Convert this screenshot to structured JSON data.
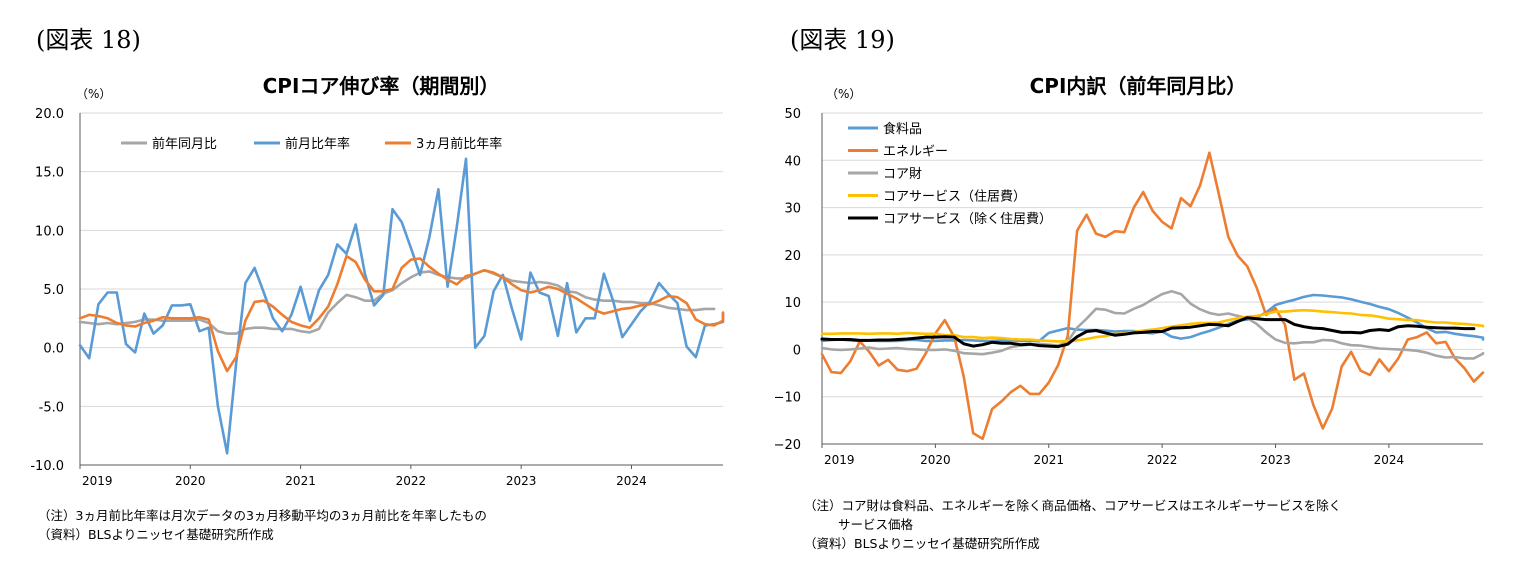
{
  "figures": [
    {
      "label": "(図表 18)"
    },
    {
      "label": "(図表 19)"
    }
  ],
  "chart_data": [
    {
      "type": "line",
      "title": "CPIコア伸び率（期間別）",
      "unit_label": "（%）",
      "xlabel": "",
      "ylabel": "",
      "ylim": [
        -10,
        20
      ],
      "yticks": [
        -10,
        -5,
        0,
        5,
        10,
        15,
        20
      ],
      "ytick_labels": [
        "-10.0",
        "-5.0",
        "0.0",
        "5.0",
        "10.0",
        "15.0",
        "20.0"
      ],
      "xlim": [
        2019,
        2024.83
      ],
      "xticks": [
        2019,
        2020,
        2021,
        2022,
        2023,
        2024
      ],
      "xtick_labels": [
        "2019",
        "2020",
        "2021",
        "2022",
        "2023",
        "2024"
      ],
      "grid": true,
      "legend_position": "top",
      "start": 2019.0,
      "step": 0.0833333,
      "series": [
        {
          "name": "前年同月比",
          "color": "#a6a6a6",
          "values": [
            2.2,
            2.1,
            2.0,
            2.1,
            2.0,
            2.1,
            2.2,
            2.4,
            2.4,
            2.3,
            2.3,
            2.3,
            2.3,
            2.4,
            2.1,
            1.4,
            1.2,
            1.2,
            1.6,
            1.7,
            1.7,
            1.6,
            1.6,
            1.6,
            1.4,
            1.3,
            1.6,
            3.0,
            3.8,
            4.5,
            4.3,
            4.0,
            4.0,
            4.6,
            4.9,
            5.5,
            6.0,
            6.4,
            6.5,
            6.2,
            6.0,
            5.9,
            5.9,
            6.3,
            6.6,
            6.3,
            6.0,
            5.7,
            5.6,
            5.5,
            5.6,
            5.5,
            5.3,
            4.8,
            4.7,
            4.3,
            4.1,
            4.0,
            4.0,
            3.9,
            3.9,
            3.8,
            3.8,
            3.6,
            3.4,
            3.3,
            3.2,
            3.2,
            3.3,
            3.3
          ]
        },
        {
          "name": "前月比年率",
          "color": "#5b9bd5",
          "values": [
            0.2,
            -0.9,
            3.7,
            4.7,
            4.7,
            0.3,
            -0.4,
            2.9,
            1.2,
            1.9,
            3.6,
            3.6,
            3.7,
            1.4,
            1.7,
            -5.0,
            -9.0,
            -1.3,
            5.5,
            6.8,
            4.7,
            2.5,
            1.4,
            2.8,
            5.2,
            2.3,
            4.9,
            6.2,
            8.8,
            8.0,
            10.5,
            6.3,
            3.6,
            4.5,
            11.8,
            10.7,
            8.5,
            6.2,
            9.4,
            13.5,
            5.2,
            10.3,
            16.1,
            0.0,
            1.0,
            4.8,
            6.2,
            3.3,
            0.7,
            6.4,
            4.7,
            4.4,
            1.0,
            5.5,
            1.3,
            2.5,
            2.5,
            6.3,
            4.0,
            0.9,
            2.0,
            3.1,
            3.9,
            5.5,
            4.6,
            3.8,
            0.1,
            -0.8,
            1.9,
            2.0,
            2.2,
            2.9
          ]
        },
        {
          "name": "3ヵ月前比年率",
          "color": "#ed7d31",
          "values": [
            2.5,
            2.8,
            2.7,
            2.5,
            2.1,
            1.9,
            1.8,
            2.1,
            2.3,
            2.6,
            2.5,
            2.5,
            2.5,
            2.6,
            2.4,
            -0.3,
            -2.0,
            -0.8,
            2.3,
            3.9,
            4.0,
            3.5,
            2.8,
            2.2,
            1.9,
            1.7,
            2.5,
            3.5,
            5.4,
            7.8,
            7.3,
            5.8,
            4.8,
            4.8,
            5.0,
            6.8,
            7.5,
            7.6,
            6.9,
            6.3,
            5.8,
            5.4,
            6.1,
            6.3,
            6.6,
            6.4,
            6.0,
            5.4,
            4.9,
            4.7,
            4.9,
            5.2,
            5.0,
            4.6,
            4.2,
            3.7,
            3.2,
            2.9,
            3.1,
            3.3,
            3.4,
            3.6,
            3.7,
            4.0,
            4.4,
            4.3,
            3.8,
            2.4,
            2.0,
            1.9,
            2.3,
            3.0
          ]
        }
      ]
    },
    {
      "type": "line",
      "title": "CPI内訳（前年同月比）",
      "unit_label": "（%）",
      "xlabel": "",
      "ylabel": "",
      "ylim": [
        -20,
        50
      ],
      "yticks": [
        -20,
        -10,
        0,
        10,
        20,
        30,
        40,
        50
      ],
      "ytick_labels": [
        "−20",
        "−10",
        "0",
        "10",
        "20",
        "30",
        "40",
        "50"
      ],
      "xlim": [
        2019,
        2024.83
      ],
      "xticks": [
        2019,
        2020,
        2021,
        2022,
        2023,
        2024
      ],
      "xtick_labels": [
        "2019",
        "2020",
        "2021",
        "2022",
        "2023",
        "2024"
      ],
      "grid": true,
      "legend_position": "top-left",
      "start": 2019.0,
      "step": 0.0833333,
      "series": [
        {
          "name": "食料品",
          "color": "#5b9bd5",
          "values": [
            1.8,
            2.0,
            2.1,
            1.9,
            1.8,
            1.9,
            1.8,
            1.8,
            1.8,
            2.0,
            2.0,
            1.8,
            1.8,
            1.9,
            1.9,
            2.0,
            1.9,
            1.8,
            1.8,
            1.9,
            1.9,
            1.8,
            1.8,
            1.8,
            3.5,
            4.0,
            4.5,
            4.2,
            4.1,
            4.1,
            4.0,
            3.8,
            3.9,
            3.9,
            3.6,
            3.4,
            3.8,
            2.7,
            2.3,
            2.6,
            3.3,
            3.9,
            4.6,
            5.4,
            6.1,
            6.3,
            6.8,
            7.8,
            9.4,
            10.0,
            10.5,
            11.1,
            11.5,
            11.4,
            11.2,
            11.0,
            10.6,
            10.1,
            9.6,
            9.0,
            8.5,
            7.7,
            6.7,
            5.7,
            4.5,
            3.6,
            3.7,
            3.3,
            3.0,
            2.8,
            2.5,
            2.4,
            2.2,
            2.2,
            2.2,
            2.1,
            2.1,
            2.2,
            2.2,
            2.1,
            2.3,
            2.4,
            2.1,
            2.1
          ]
        },
        {
          "name": "エネルギー",
          "color": "#ed7d31",
          "values": [
            -1.0,
            -4.8,
            -5.0,
            -2.5,
            1.7,
            -0.5,
            -3.4,
            -2.2,
            -4.3,
            -4.6,
            -4.1,
            -0.8,
            3.4,
            6.2,
            2.6,
            -5.7,
            -17.7,
            -18.9,
            -12.6,
            -11.0,
            -9.0,
            -7.7,
            -9.4,
            -9.4,
            -7.0,
            -3.3,
            2.8,
            25.1,
            28.5,
            24.5,
            23.8,
            25.0,
            24.8,
            30.0,
            33.3,
            29.3,
            27.0,
            25.6,
            32.0,
            30.3,
            34.6,
            41.6,
            32.9,
            23.8,
            19.8,
            17.6,
            13.1,
            7.3,
            8.7,
            5.2,
            -6.4,
            -5.1,
            -11.7,
            -16.7,
            -12.5,
            -3.6,
            -0.5,
            -4.5,
            -5.4,
            -2.1,
            -4.6,
            -1.9,
            2.1,
            2.6,
            3.6,
            1.3,
            1.6,
            -1.9,
            -4.0,
            -6.8,
            -4.9
          ]
        },
        {
          "name": "コア財",
          "color": "#a6a6a6",
          "values": [
            0.3,
            0.0,
            -0.1,
            0.0,
            0.2,
            0.4,
            0.1,
            0.2,
            0.3,
            0.1,
            0.0,
            -0.1,
            -0.1,
            0.0,
            -0.3,
            -0.8,
            -0.9,
            -1.0,
            -0.7,
            -0.3,
            0.5,
            0.8,
            1.0,
            1.2,
            1.0,
            0.8,
            1.7,
            4.6,
            6.5,
            8.6,
            8.4,
            7.7,
            7.6,
            8.6,
            9.4,
            10.6,
            11.7,
            12.3,
            11.7,
            9.7,
            8.5,
            7.7,
            7.3,
            7.6,
            7.1,
            6.6,
            5.4,
            3.6,
            2.1,
            1.4,
            1.3,
            1.5,
            1.5,
            2.0,
            1.9,
            1.3,
            0.9,
            0.8,
            0.5,
            0.2,
            0.1,
            0.0,
            -0.1,
            -0.3,
            -0.7,
            -1.3,
            -1.7,
            -1.6,
            -1.9,
            -1.9,
            -0.9,
            -0.8
          ]
        },
        {
          "name": "コアサービス（住居費）",
          "color": "#ffc000",
          "values": [
            3.3,
            3.3,
            3.4,
            3.4,
            3.4,
            3.3,
            3.4,
            3.4,
            3.3,
            3.5,
            3.4,
            3.3,
            3.3,
            3.0,
            3.0,
            2.6,
            2.6,
            2.4,
            2.5,
            2.4,
            2.2,
            2.1,
            2.1,
            1.9,
            1.8,
            1.7,
            1.8,
            1.9,
            2.2,
            2.6,
            2.8,
            3.3,
            3.4,
            3.7,
            4.0,
            4.2,
            4.5,
            4.8,
            5.1,
            5.4,
            5.6,
            5.6,
            5.7,
            6.2,
            6.6,
            6.9,
            7.1,
            7.5,
            8.0,
            8.0,
            8.2,
            8.3,
            8.2,
            8.0,
            7.9,
            7.7,
            7.6,
            7.3,
            7.2,
            6.9,
            6.5,
            6.4,
            6.2,
            6.2,
            5.9,
            5.7,
            5.7,
            5.5,
            5.4,
            5.2,
            5.0,
            4.9
          ]
        },
        {
          "name": "コアサービス（除く住居費）",
          "color": "#000000",
          "values": [
            2.2,
            2.1,
            2.1,
            2.1,
            1.9,
            1.9,
            2.0,
            2.0,
            2.1,
            2.2,
            2.4,
            2.6,
            2.6,
            2.7,
            2.6,
            1.2,
            0.7,
            1.0,
            1.5,
            1.3,
            1.3,
            1.0,
            1.1,
            0.8,
            0.7,
            0.6,
            1.1,
            2.7,
            3.8,
            4.0,
            3.5,
            3.0,
            3.2,
            3.5,
            3.6,
            3.8,
            3.8,
            4.5,
            4.6,
            4.7,
            5.0,
            5.3,
            5.2,
            5.0,
            5.9,
            6.7,
            6.5,
            6.3,
            6.3,
            6.3,
            5.3,
            4.8,
            4.5,
            4.4,
            4.0,
            3.6,
            3.6,
            3.5,
            4.0,
            4.2,
            4.0,
            4.8,
            5.0,
            4.9,
            4.7,
            4.6,
            4.5,
            4.5,
            4.4,
            4.4
          ]
        }
      ]
    }
  ],
  "notes": [
    {
      "lines": [
        "（注）3ヵ月前比年率は月次データの3ヵ月移動平均の3ヵ月前比を年率したもの",
        "（資料）BLSよりニッセイ基礎研究所作成"
      ]
    },
    {
      "lines": [
        "（注）コア財は食料品、エネルギーを除く商品価格、コアサービスはエネルギーサービスを除く",
        "サービス価格",
        "（資料）BLSよりニッセイ基礎研究所作成"
      ]
    }
  ]
}
